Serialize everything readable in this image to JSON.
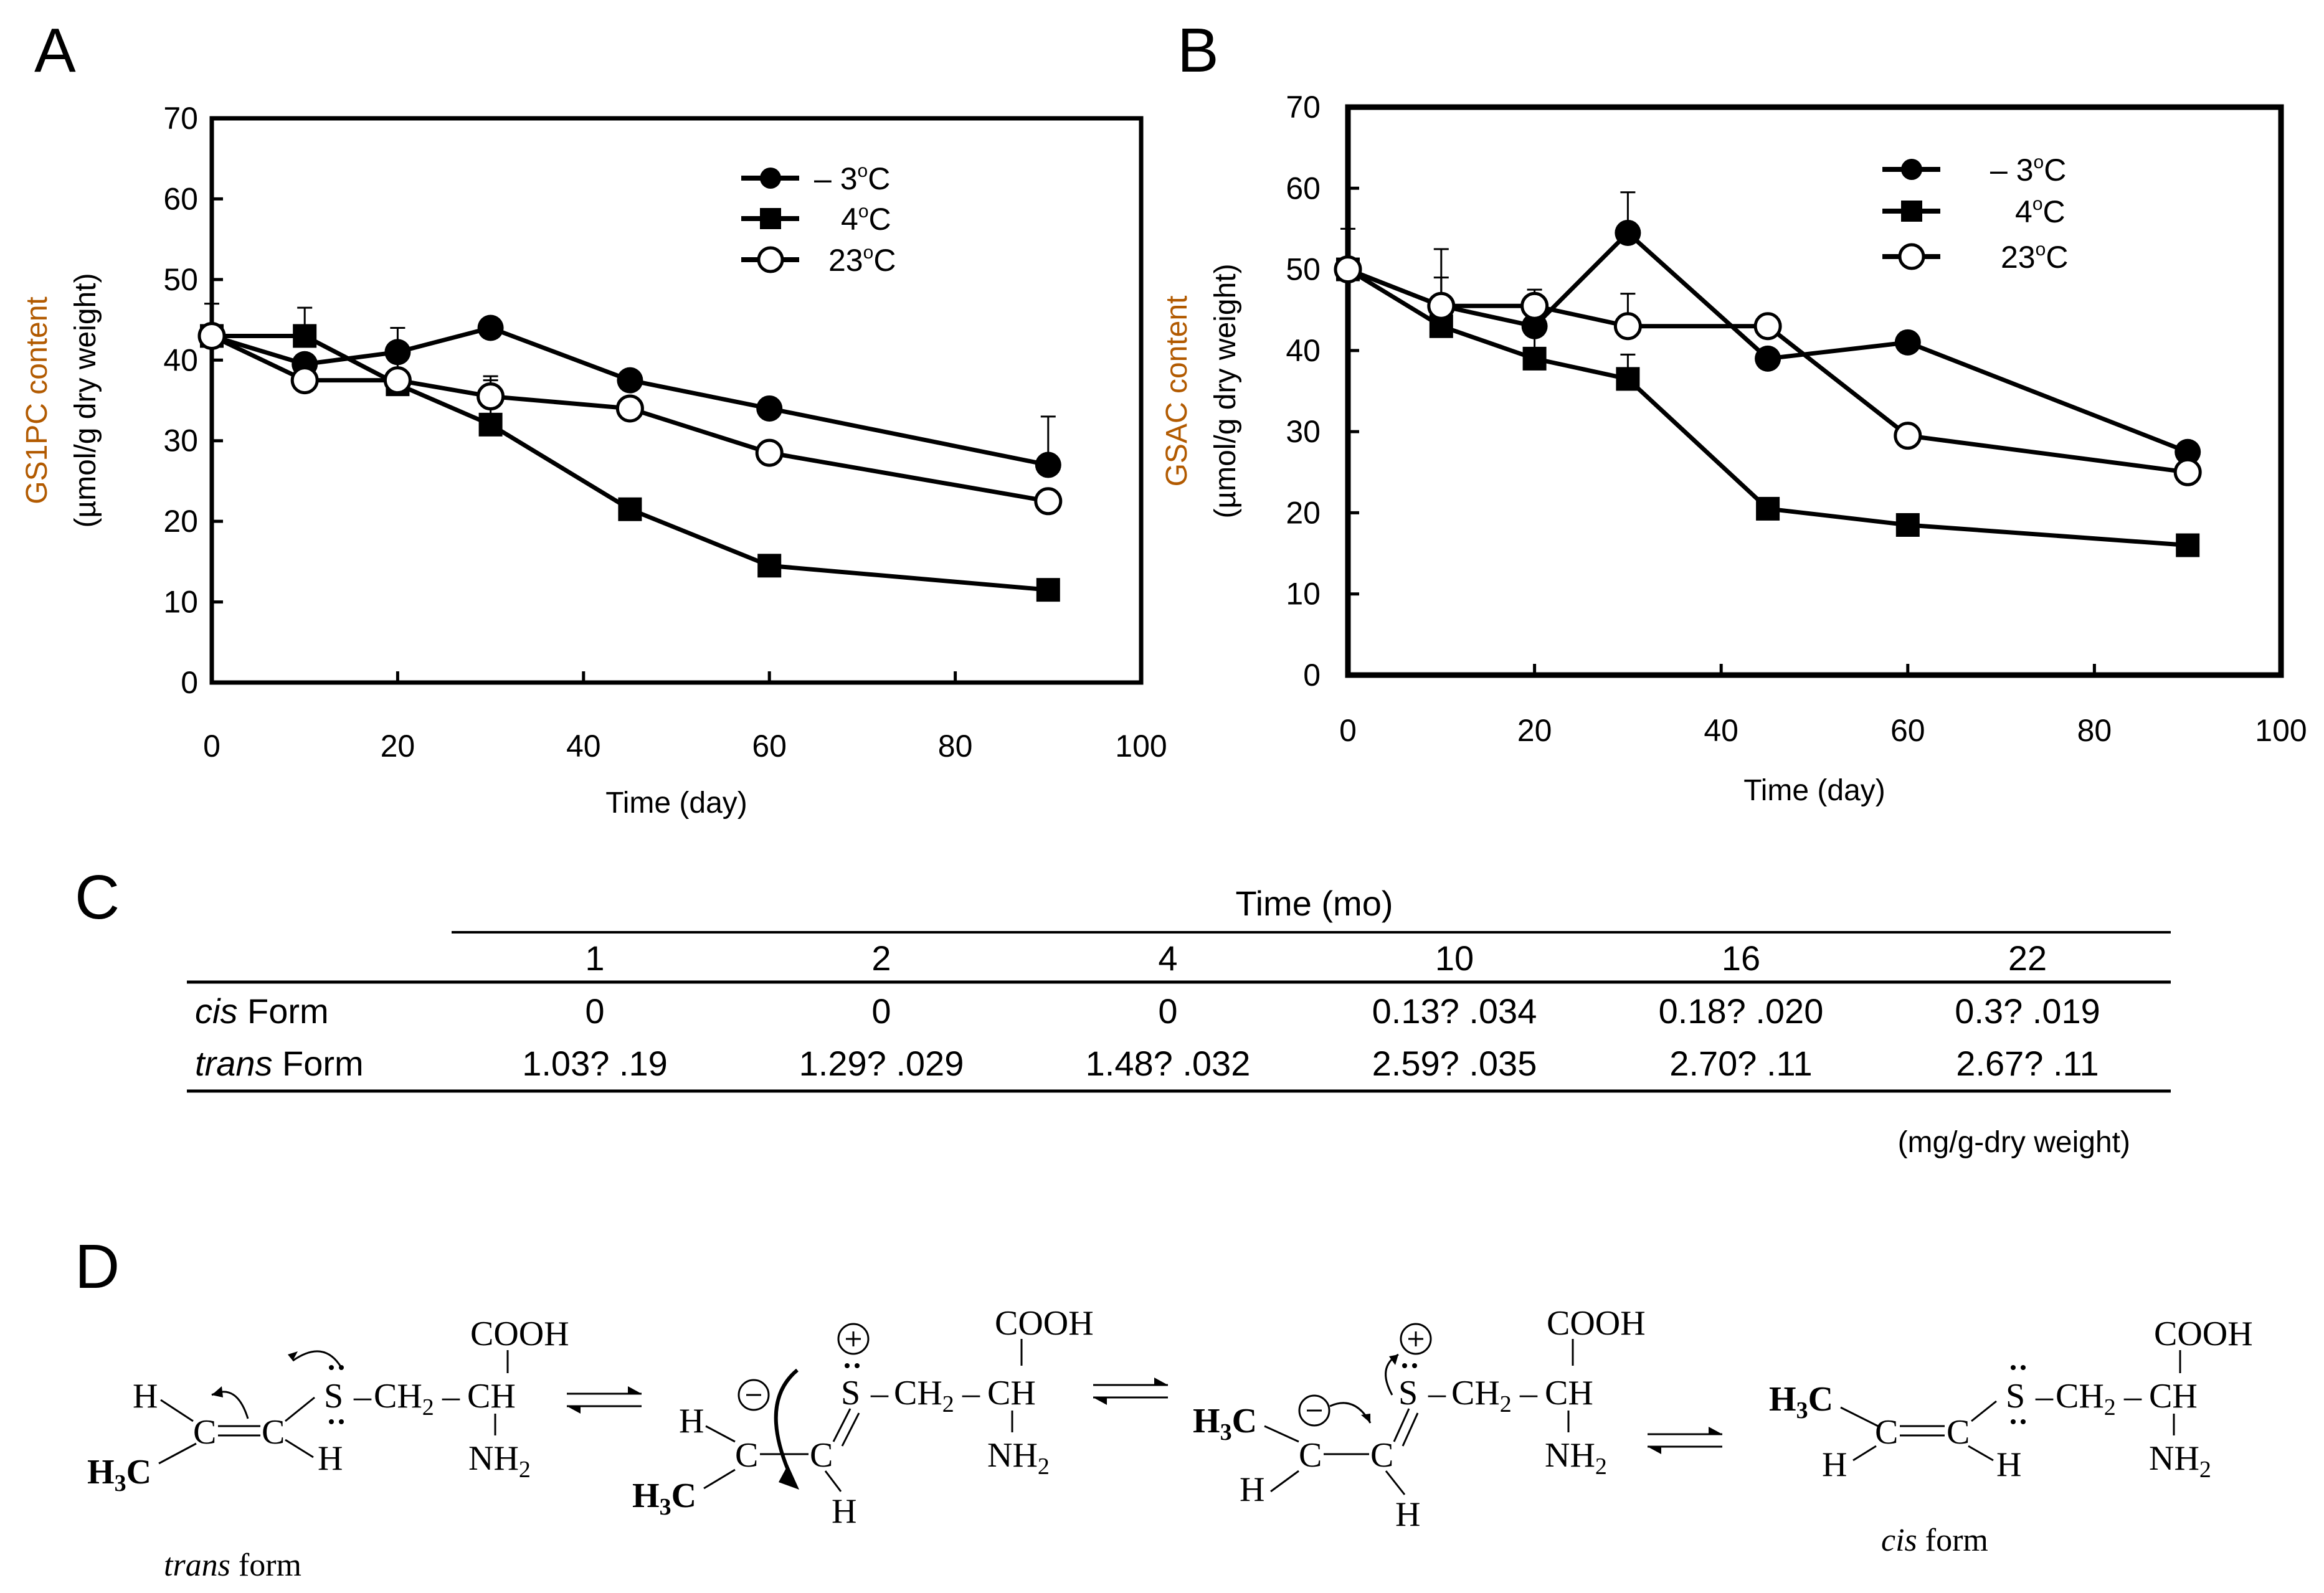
{
  "panels": {
    "a": "A",
    "b": "B",
    "c": "C",
    "d": "D"
  },
  "chart_data": [
    {
      "id": "A",
      "type": "line",
      "title": "",
      "xlabel": "Time (day)",
      "ylabel_line1": "GS1PC content",
      "ylabel_line2": "(µmol/g dry weight)",
      "xlim": [
        0,
        100
      ],
      "ylim": [
        0,
        70
      ],
      "xticks": [
        0,
        20,
        40,
        60,
        80,
        100
      ],
      "yticks": [
        0,
        10,
        20,
        30,
        40,
        50,
        60,
        70
      ],
      "legend_position": "top-right",
      "series": [
        {
          "name": "– 3ºC",
          "label_main": "– 3",
          "label_sup": "o",
          "label_unit": "C",
          "marker": "filled-circle",
          "x": [
            0,
            10,
            20,
            30,
            45,
            60,
            90
          ],
          "y": [
            43,
            39.5,
            41,
            44,
            37.5,
            34,
            27
          ],
          "err": [
            0,
            0,
            3,
            0,
            0,
            0,
            6
          ]
        },
        {
          "name": "4ºC",
          "label_main": "4",
          "label_sup": "o",
          "label_unit": "C",
          "marker": "filled-square",
          "x": [
            0,
            10,
            20,
            30,
            45,
            60,
            90
          ],
          "y": [
            43,
            43,
            37,
            32,
            21.5,
            14.5,
            11.5
          ],
          "err": [
            4,
            3.5,
            0,
            6,
            0,
            0,
            0
          ]
        },
        {
          "name": "23ºC",
          "label_main": "23",
          "label_sup": "o",
          "label_unit": "C",
          "marker": "open-circle",
          "x": [
            0,
            10,
            20,
            30,
            45,
            60,
            90
          ],
          "y": [
            43,
            37.5,
            37.5,
            35.5,
            34,
            28.5,
            22.5
          ],
          "err": [
            0,
            0,
            2.5,
            2,
            0,
            0,
            0
          ]
        }
      ]
    },
    {
      "id": "B",
      "type": "line",
      "title": "",
      "xlabel": "Time (day)",
      "ylabel_line1": "GSAC content",
      "ylabel_line2": "(µmol/g dry weight)",
      "xlim": [
        0,
        100
      ],
      "ylim": [
        0,
        70
      ],
      "xticks": [
        0,
        20,
        40,
        60,
        80,
        100
      ],
      "yticks": [
        0,
        10,
        20,
        30,
        40,
        50,
        60,
        70
      ],
      "legend_position": "top-right",
      "series": [
        {
          "name": "– 3ºC",
          "label_main": "– 3",
          "label_sup": "o",
          "label_unit": "C",
          "marker": "filled-circle",
          "x": [
            0,
            10,
            20,
            30,
            45,
            60,
            90
          ],
          "y": [
            50,
            45.5,
            43,
            54.5,
            39,
            41,
            27.5
          ],
          "err": [
            0,
            0,
            0,
            5,
            0,
            0,
            0
          ]
        },
        {
          "name": "4ºC",
          "label_main": "4",
          "label_sup": "o",
          "label_unit": "C",
          "marker": "filled-square",
          "x": [
            0,
            10,
            20,
            30,
            45,
            60,
            90
          ],
          "y": [
            50,
            43,
            39,
            36.5,
            20.5,
            18.5,
            16
          ],
          "err": [
            5,
            6,
            4,
            3,
            0,
            0,
            0
          ]
        },
        {
          "name": "23ºC",
          "label_main": "23",
          "label_sup": "o",
          "label_unit": "C",
          "marker": "open-circle",
          "x": [
            0,
            10,
            20,
            30,
            45,
            60,
            90
          ],
          "y": [
            50,
            45.5,
            45.5,
            43,
            43,
            29.5,
            25
          ],
          "err": [
            0,
            7,
            2,
            4,
            0,
            0,
            0
          ]
        }
      ]
    },
    {
      "id": "C",
      "type": "table",
      "group_header": "Time (mo)",
      "columns": [
        "1",
        "2",
        "4",
        "10",
        "16",
        "22"
      ],
      "rows": [
        {
          "label_italic": "cis",
          "label_rest": " Form",
          "values": [
            "0",
            "0",
            "0",
            "0.13?  .034",
            "0.18?  .020",
            "0.3?  .019"
          ]
        },
        {
          "label_italic": "trans",
          "label_rest": " Form",
          "values": [
            "1.03?  .19",
            "1.29?  .029",
            "1.48?  .032",
            "2.59?  .035",
            "2.70?  .11",
            "2.67?  .11"
          ]
        }
      ],
      "unit_note": "(mg/g-dry weight)"
    }
  ],
  "scheme": {
    "cooh": "COOH",
    "h": "H",
    "h3": "H",
    "h3_sub": "3",
    "c": "C",
    "s": "S",
    "ch": "CH",
    "ch2": "CH",
    "ch2_sub": "2",
    "nh2": "NH",
    "nh2_sub": "2",
    "dash": "–",
    "trans_caption_italic": "trans",
    "cis_caption_italic": "cis",
    "caption_rest": " form"
  }
}
